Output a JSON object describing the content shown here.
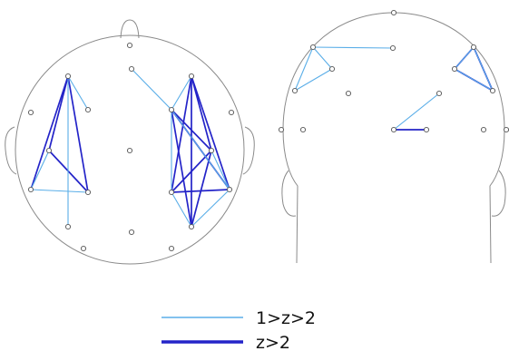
{
  "colors": {
    "weak": "#5aaee8",
    "strong": "#2424c8",
    "outline": "#8a8a8a",
    "electrode_stroke": "#555555"
  },
  "legend": {
    "weak_label": "1>z>2",
    "strong_label": "z>2"
  },
  "views": [
    "top-view",
    "back-view"
  ]
}
